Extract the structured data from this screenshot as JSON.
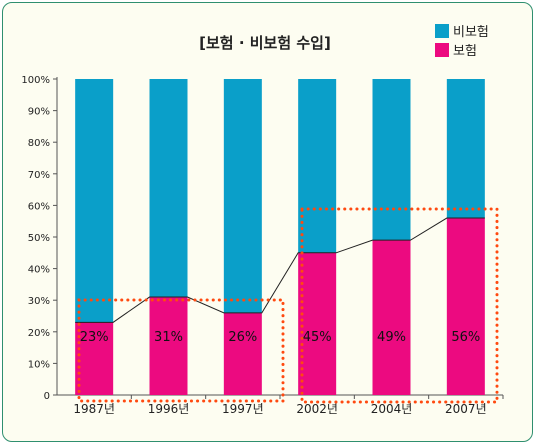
{
  "chart_data": {
    "type": "bar",
    "stacked": true,
    "title": "[보험 · 비보험 수입]",
    "categories": [
      "1987년",
      "1996년",
      "1997년",
      "2002년",
      "2004년",
      "2007년"
    ],
    "series": [
      {
        "name": "보험",
        "color": "#ec0a80",
        "values": [
          23,
          31,
          26,
          45,
          49,
          56
        ]
      },
      {
        "name": "비보험",
        "color": "#0a9fc9",
        "values": [
          77,
          69,
          74,
          55,
          51,
          44
        ]
      }
    ],
    "data_labels": [
      "23%",
      "31%",
      "26%",
      "45%",
      "49%",
      "56%"
    ],
    "y_ticks": [
      "0",
      "10%",
      "20%",
      "30%",
      "40%",
      "50%",
      "60%",
      "70%",
      "80%",
      "90%",
      "100%"
    ],
    "ylim": [
      0,
      100
    ],
    "legend": [
      {
        "label": "비보험",
        "color": "#0a9fc9"
      },
      {
        "label": "보험",
        "color": "#ec0a80"
      }
    ],
    "legend_position": "top-right",
    "trend_line": true,
    "highlight_groups": [
      [
        "1987년",
        "1996년",
        "1997년"
      ],
      [
        "2002년",
        "2004년",
        "2007년"
      ]
    ],
    "highlight_color": "#ff4a10"
  }
}
